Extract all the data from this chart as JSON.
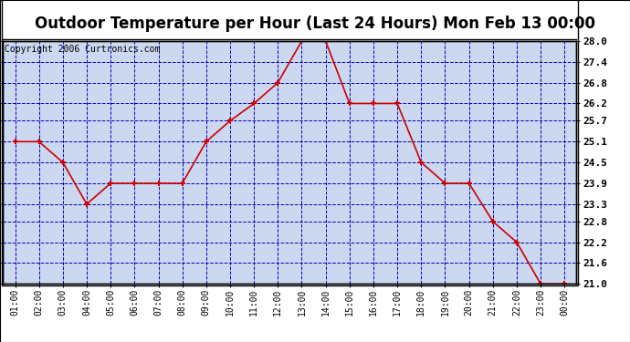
{
  "title": "Outdoor Temperature per Hour (Last 24 Hours) Mon Feb 13 00:00",
  "copyright": "Copyright 2006 Curtronics.com",
  "hours": [
    "01:00",
    "02:00",
    "03:00",
    "04:00",
    "05:00",
    "06:00",
    "07:00",
    "08:00",
    "09:00",
    "10:00",
    "11:00",
    "12:00",
    "13:00",
    "14:00",
    "15:00",
    "16:00",
    "17:00",
    "18:00",
    "19:00",
    "20:00",
    "21:00",
    "22:00",
    "23:00",
    "00:00"
  ],
  "temps": [
    25.1,
    25.1,
    24.5,
    23.3,
    23.9,
    23.9,
    23.9,
    23.9,
    25.1,
    25.7,
    26.2,
    26.8,
    28.0,
    28.0,
    26.2,
    26.2,
    26.2,
    24.5,
    23.9,
    23.9,
    22.8,
    22.2,
    21.0,
    21.0
  ],
  "ylim_min": 21.0,
  "ylim_max": 28.0,
  "yticks": [
    21.0,
    21.6,
    22.2,
    22.8,
    23.3,
    23.9,
    24.5,
    25.1,
    25.7,
    26.2,
    26.8,
    27.4,
    28.0
  ],
  "line_color": "#cc0000",
  "marker_color": "#cc0000",
  "bg_color": "#ffffff",
  "plot_bg": "#ccd8f0",
  "grid_color": "#0000bb",
  "border_color": "#000000",
  "title_fontsize": 12,
  "copyright_fontsize": 7
}
